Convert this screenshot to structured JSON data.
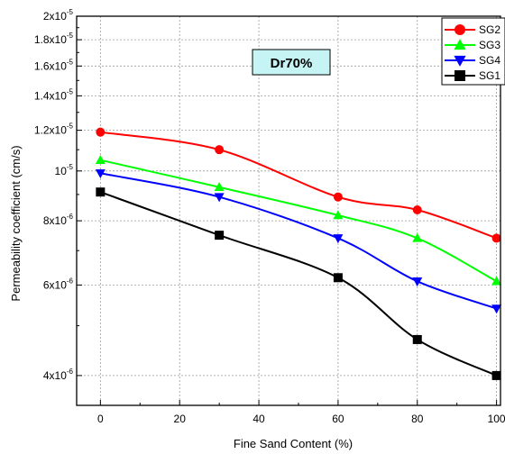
{
  "chart_data": {
    "type": "line",
    "title": "",
    "xlabel": "Fine Sand Content (%)",
    "ylabel": "Permeability coefficient (cm/s)",
    "yscale": "log",
    "xlim": [
      -6,
      101
    ],
    "ylim": [
      3.5e-06,
      2e-05
    ],
    "grid": true,
    "legend_position": "top-right",
    "x_ticks": [
      0,
      20,
      40,
      60,
      80,
      100
    ],
    "x_tick_labels": [
      "0",
      "20",
      "40",
      "60",
      "80",
      "100"
    ],
    "y_ticks": [
      4e-06,
      6e-06,
      8e-06,
      1e-05,
      1.2e-05,
      1.4e-05,
      1.6e-05,
      1.8e-05,
      2e-05
    ],
    "y_tick_labels": [
      {
        "mantissa": "4x10",
        "exp": "-6"
      },
      {
        "mantissa": "6x10",
        "exp": "-6"
      },
      {
        "mantissa": "8x10",
        "exp": "-6"
      },
      {
        "mantissa": "10",
        "exp": "-5"
      },
      {
        "mantissa": "1.2x10",
        "exp": "-5"
      },
      {
        "mantissa": "1.4x10",
        "exp": "-5"
      },
      {
        "mantissa": "1.6x10",
        "exp": "-5"
      },
      {
        "mantissa": "1.8x10",
        "exp": "-5"
      },
      {
        "mantissa": "2x10",
        "exp": "-5"
      }
    ],
    "annotation": "Dr70%",
    "x": [
      0,
      30,
      60,
      80,
      100
    ],
    "series": [
      {
        "name": "SG2",
        "color": "#ff0000",
        "marker": "circle",
        "values": [
          1.19e-05,
          1.1e-05,
          8.9e-06,
          8.4e-06,
          7.4e-06
        ]
      },
      {
        "name": "SG3",
        "color": "#00ff00",
        "marker": "triangle-up",
        "values": [
          1.05e-05,
          9.3e-06,
          8.2e-06,
          7.4e-06,
          6.1e-06
        ]
      },
      {
        "name": "SG4",
        "color": "#0000ff",
        "marker": "triangle-down",
        "values": [
          9.9e-06,
          8.9e-06,
          7.4e-06,
          6.1e-06,
          5.4e-06
        ]
      },
      {
        "name": "SG1",
        "color": "#000000",
        "marker": "square",
        "values": [
          9.1e-06,
          7.5e-06,
          6.2e-06,
          4.7e-06,
          4e-06
        ]
      }
    ]
  }
}
